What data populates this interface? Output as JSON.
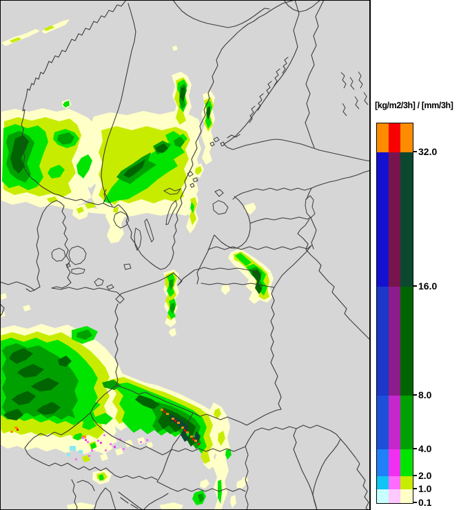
{
  "legend": {
    "title": "[kg/m2/3h] / [mm/3h]",
    "tick_labels": [
      "32.0",
      "16.0",
      "8.0",
      "4.0",
      "2.0",
      "1.0",
      "0.1"
    ],
    "rows": [
      [
        "#ff8c00",
        "#f80000",
        "#ff8c00"
      ],
      [
        "#1410d0",
        "#78144c",
        "#0c4830"
      ],
      [
        "#1c38c8",
        "#8c1c8c",
        "#006400"
      ],
      [
        "#1c50d8",
        "#c428cc",
        "#00a000"
      ],
      [
        "#2080f8",
        "#f030f0",
        "#00e400"
      ],
      [
        "#10c4f4",
        "#ff6cff",
        "#c8ec00"
      ],
      [
        "#c8ffff",
        "#ffc8ff",
        "#ffffc8"
      ]
    ]
  },
  "map": {
    "background": "#d6d6d6",
    "outline_color": "#3a3a3a",
    "frame_color": "#000000",
    "palette": {
      "trace": "#ffffc8",
      "light": "#c8ec00",
      "moderate": "#00e400",
      "heavy": "#00a000",
      "vheavy": "#006400",
      "intense": "#0c4830",
      "ext_orange": "#ff8c00",
      "ext_red": "#f80000",
      "sleet_cyan": "#8ce8f4",
      "sleet_magenta": "#ff6cff",
      "sleet_deep": "#e838e8"
    }
  }
}
